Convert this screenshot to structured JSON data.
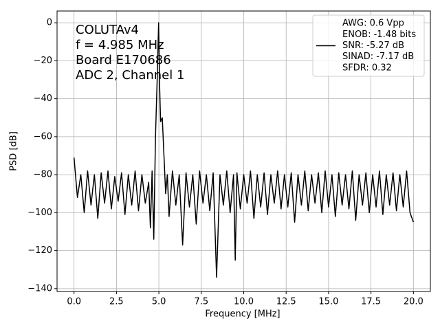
{
  "chart_data": {
    "type": "line",
    "xlabel": "Frequency [MHz]",
    "ylabel": "PSD [dB]",
    "annotations": [
      "COLUTAv4",
      "f = 4.985 MHz",
      "Board E170686",
      "ADC 2, Channel 1"
    ],
    "x": [
      0.0,
      0.2,
      0.4,
      0.6,
      0.8,
      1.0,
      1.2,
      1.4,
      1.6,
      1.8,
      2.0,
      2.2,
      2.4,
      2.6,
      2.8,
      3.0,
      3.2,
      3.4,
      3.6,
      3.8,
      4.0,
      4.2,
      4.4,
      4.5,
      4.6,
      4.7,
      4.8,
      4.9,
      4.985,
      5.05,
      5.1,
      5.2,
      5.3,
      5.4,
      5.5,
      5.6,
      5.8,
      6.0,
      6.2,
      6.4,
      6.6,
      6.8,
      7.0,
      7.2,
      7.4,
      7.6,
      7.8,
      8.0,
      8.2,
      8.4,
      8.6,
      8.8,
      9.0,
      9.2,
      9.4,
      9.5,
      9.6,
      9.8,
      10.0,
      10.2,
      10.4,
      10.6,
      10.8,
      11.0,
      11.2,
      11.4,
      11.6,
      11.8,
      12.0,
      12.2,
      12.4,
      12.6,
      12.8,
      13.0,
      13.2,
      13.4,
      13.6,
      13.8,
      14.0,
      14.2,
      14.4,
      14.6,
      14.8,
      15.0,
      15.2,
      15.4,
      15.6,
      15.8,
      16.0,
      16.2,
      16.4,
      16.6,
      16.8,
      17.0,
      17.2,
      17.4,
      17.6,
      17.8,
      18.0,
      18.2,
      18.4,
      18.6,
      18.8,
      19.0,
      19.2,
      19.4,
      19.6,
      19.8,
      20.0
    ],
    "series": [
      {
        "name": [
          "AWG: 0.6 Vpp",
          "ENOB: -1.48 bits",
          "SNR: -5.27 dB",
          "SINAD: -7.17 dB",
          "SFDR: 0.32"
        ],
        "color": "#000000",
        "values": [
          -71,
          -92,
          -80,
          -100,
          -78,
          -96,
          -80,
          -103,
          -79,
          -95,
          -78,
          -98,
          -81,
          -94,
          -79,
          -101,
          -80,
          -96,
          -78,
          -99,
          -80,
          -95,
          -84,
          -108,
          -78,
          -114,
          -60,
          -30,
          0,
          -35,
          -52,
          -50,
          -70,
          -90,
          -80,
          -102,
          -78,
          -96,
          -80,
          -117,
          -79,
          -97,
          -80,
          -106,
          -78,
          -95,
          -80,
          -99,
          -79,
          -134,
          -80,
          -96,
          -78,
          -100,
          -80,
          -125,
          -79,
          -98,
          -80,
          -95,
          -78,
          -103,
          -80,
          -97,
          -79,
          -101,
          -80,
          -95,
          -78,
          -98,
          -80,
          -97,
          -79,
          -105,
          -80,
          -96,
          -78,
          -99,
          -80,
          -95,
          -79,
          -100,
          -78,
          -97,
          -80,
          -102,
          -79,
          -96,
          -80,
          -98,
          -78,
          -104,
          -80,
          -96,
          -79,
          -100,
          -80,
          -97,
          -78,
          -101,
          -80,
          -96,
          -79,
          -99,
          -80,
          -97,
          -78,
          -100,
          -105
        ]
      }
    ],
    "xlim": [
      -1,
      21
    ],
    "xticks": [
      {
        "value": 0,
        "label": "0.0"
      },
      2.5,
      {
        "value": 5,
        "label": "5.0"
      },
      7.5,
      {
        "value": 10,
        "label": "10.0"
      },
      12.5,
      {
        "value": 15,
        "label": "15.0"
      },
      17.5,
      {
        "value": 20,
        "label": "20.0"
      }
    ],
    "ylim": [
      -141.5,
      6.2
    ],
    "yticks": [
      0,
      {
        "value": -20,
        "label": "−20"
      },
      {
        "value": -40,
        "label": "−40"
      },
      {
        "value": -60,
        "label": "−60"
      },
      {
        "value": -80,
        "label": "−80"
      },
      {
        "value": -100,
        "label": "−100"
      },
      {
        "value": -120,
        "label": "−120"
      },
      {
        "value": -140,
        "label": "−140"
      }
    ],
    "grid": true,
    "legend": "upper right"
  }
}
